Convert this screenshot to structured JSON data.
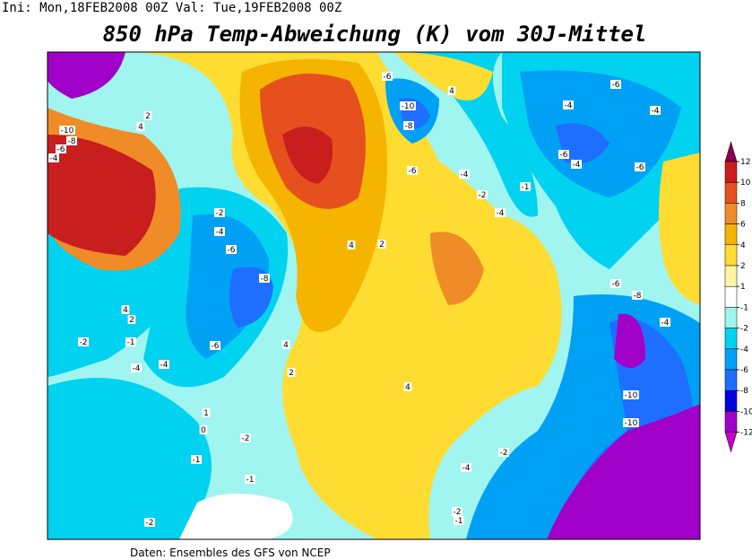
{
  "header": "Ini: Mon,18FEB2008 00Z Val: Tue,19FEB2008 00Z",
  "title": "850 hPa Temp-Abweichung (K) vom 30J-Mittel",
  "footer": "Daten: Ensembles des GFS von NCEP",
  "colorbar": {
    "levels": [
      12,
      10,
      8,
      6,
      4,
      2,
      1,
      -1,
      -2,
      -4,
      -6,
      -8,
      -10,
      -12
    ],
    "colors": [
      "#8c0050",
      "#c81e1e",
      "#e6501e",
      "#f08c28",
      "#f5b400",
      "#ffdc32",
      "#fff5a0",
      "#ffffff",
      "#a0f5f0",
      "#00d2f0",
      "#00a0f5",
      "#1e6eff",
      "#0000dc",
      "#a000c8",
      "#c800c8"
    ]
  },
  "contour_labels": [
    "-10",
    "-8",
    "-6",
    "-4",
    "2",
    "4",
    "-2",
    "-4",
    "-6",
    "-8",
    "4",
    "2",
    "-2",
    "-1",
    "-4",
    "-4",
    "-6",
    "4",
    "2",
    "-6",
    "-10",
    "-8",
    "-6",
    "4",
    "-4",
    "-2",
    "-4",
    "-1",
    "2",
    "4",
    "-6",
    "-4",
    "-4",
    "-6",
    "-4",
    "-6",
    "-6",
    "-8",
    "-4",
    "-10",
    "-10",
    "-4",
    "-2",
    "4",
    "-2",
    "-1",
    "-1",
    "-2",
    "1",
    "0",
    "-2",
    "-1"
  ]
}
